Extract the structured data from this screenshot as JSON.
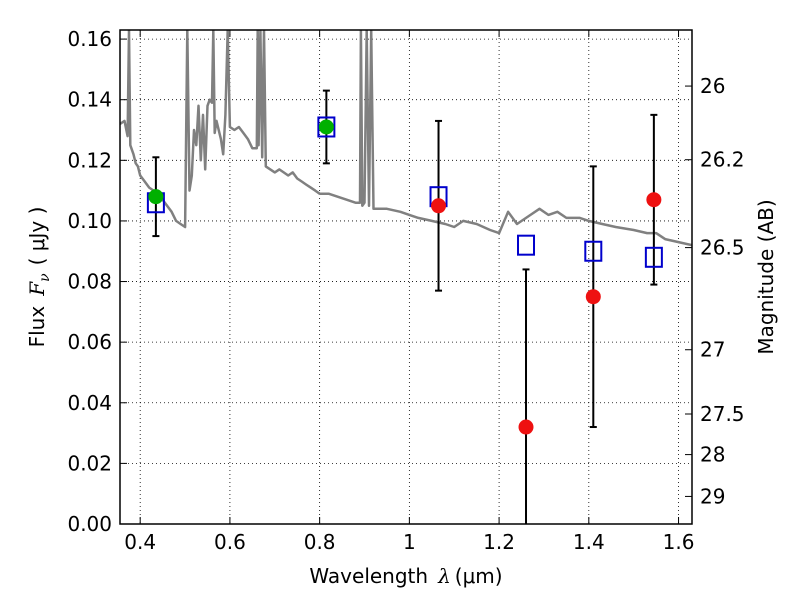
{
  "chart_data": {
    "type": "scatter",
    "xlabel": "Wavelength",
    "xlabel_symbol": "λ",
    "xlabel_unit": "(μm)",
    "ylabel_prefix": "Flux",
    "ylabel_symbol": "F",
    "ylabel_subscript": "ν",
    "ylabel_unit": "( μJy )",
    "ylabel_right": "Magnitude (AB)",
    "xlim": [
      0.355,
      1.63
    ],
    "ylim": [
      0.0,
      0.163
    ],
    "grid": true,
    "x_ticks": [
      0.4,
      0.6,
      0.8,
      1.0,
      1.2,
      1.4,
      1.6
    ],
    "x_tick_labels": [
      "0.4",
      "0.6",
      "0.8",
      "1",
      "1.2",
      "1.4",
      "1.6"
    ],
    "y_ticks": [
      0.0,
      0.02,
      0.04,
      0.06,
      0.08,
      0.1,
      0.12,
      0.14,
      0.16
    ],
    "y_tick_labels": [
      "0.00",
      "0.02",
      "0.04",
      "0.06",
      "0.08",
      "0.10",
      "0.12",
      "0.14",
      "0.16"
    ],
    "right_ticks": [
      {
        "label": "26",
        "flux": 0.1445
      },
      {
        "label": "26.2",
        "flux": 0.1202
      },
      {
        "label": "26.5",
        "flux": 0.0912
      },
      {
        "label": "27",
        "flux": 0.0575
      },
      {
        "label": "27.5",
        "flux": 0.0363
      },
      {
        "label": "28",
        "flux": 0.0229
      },
      {
        "label": "29",
        "flux": 0.0091
      }
    ],
    "colors": {
      "model": "#808080",
      "green_points": "#00b000",
      "red_points": "#ee1111",
      "squares": "#0000cc",
      "errorbars": "#000000"
    },
    "series": [
      {
        "marker": "circle-green",
        "points": [
          {
            "x": 0.435,
            "y": 0.108,
            "err_low": 0.013,
            "err_high": 0.013
          },
          {
            "x": 0.815,
            "y": 0.131,
            "err_low": 0.012,
            "err_high": 0.012
          }
        ]
      },
      {
        "marker": "circle-red",
        "points": [
          {
            "x": 1.065,
            "y": 0.105,
            "err_low": 0.028,
            "err_high": 0.028
          },
          {
            "x": 1.26,
            "y": 0.032,
            "err_low": 0.052,
            "err_high": 0.052
          },
          {
            "x": 1.41,
            "y": 0.075,
            "err_low": 0.043,
            "err_high": 0.043
          },
          {
            "x": 1.545,
            "y": 0.107,
            "err_low": 0.028,
            "err_high": 0.028
          }
        ]
      },
      {
        "marker": "square-blue-open",
        "points": [
          {
            "x": 0.435,
            "y": 0.106
          },
          {
            "x": 0.815,
            "y": 0.131
          },
          {
            "x": 1.065,
            "y": 0.108
          },
          {
            "x": 1.26,
            "y": 0.092
          },
          {
            "x": 1.41,
            "y": 0.09
          },
          {
            "x": 1.545,
            "y": 0.088
          }
        ]
      },
      {
        "marker": "line-grey",
        "points": [
          [
            0.355,
            0.132
          ],
          [
            0.365,
            0.133
          ],
          [
            0.372,
            0.128
          ],
          [
            0.375,
            0.163
          ],
          [
            0.378,
            0.125
          ],
          [
            0.385,
            0.122
          ],
          [
            0.39,
            0.119
          ],
          [
            0.395,
            0.118
          ],
          [
            0.4,
            0.115
          ],
          [
            0.41,
            0.113
          ],
          [
            0.42,
            0.111
          ],
          [
            0.43,
            0.11
          ],
          [
            0.44,
            0.109
          ],
          [
            0.45,
            0.107
          ],
          [
            0.46,
            0.105
          ],
          [
            0.47,
            0.103
          ],
          [
            0.48,
            0.1
          ],
          [
            0.49,
            0.099
          ],
          [
            0.5,
            0.098
          ],
          [
            0.505,
            0.163
          ],
          [
            0.51,
            0.11
          ],
          [
            0.515,
            0.115
          ],
          [
            0.52,
            0.13
          ],
          [
            0.525,
            0.125
          ],
          [
            0.53,
            0.138
          ],
          [
            0.535,
            0.12
          ],
          [
            0.54,
            0.135
          ],
          [
            0.545,
            0.117
          ],
          [
            0.55,
            0.138
          ],
          [
            0.555,
            0.14
          ],
          [
            0.56,
            0.139
          ],
          [
            0.563,
            0.163
          ],
          [
            0.566,
            0.129
          ],
          [
            0.57,
            0.133
          ],
          [
            0.58,
            0.127
          ],
          [
            0.585,
            0.122
          ],
          [
            0.59,
            0.135
          ],
          [
            0.595,
            0.163
          ],
          [
            0.6,
            0.131
          ],
          [
            0.61,
            0.13
          ],
          [
            0.62,
            0.131
          ],
          [
            0.63,
            0.129
          ],
          [
            0.64,
            0.127
          ],
          [
            0.65,
            0.124
          ],
          [
            0.66,
            0.124
          ],
          [
            0.662,
            0.163
          ],
          [
            0.664,
            0.125
          ],
          [
            0.668,
            0.163
          ],
          [
            0.672,
            0.121
          ],
          [
            0.676,
            0.163
          ],
          [
            0.68,
            0.118
          ],
          [
            0.69,
            0.117
          ],
          [
            0.7,
            0.116
          ],
          [
            0.71,
            0.117
          ],
          [
            0.72,
            0.116
          ],
          [
            0.73,
            0.115
          ],
          [
            0.74,
            0.116
          ],
          [
            0.75,
            0.114
          ],
          [
            0.76,
            0.113
          ],
          [
            0.77,
            0.112
          ],
          [
            0.78,
            0.111
          ],
          [
            0.79,
            0.11
          ],
          [
            0.8,
            0.109
          ],
          [
            0.82,
            0.109
          ],
          [
            0.84,
            0.108
          ],
          [
            0.86,
            0.107
          ],
          [
            0.88,
            0.106
          ],
          [
            0.89,
            0.106
          ],
          [
            0.892,
            0.163
          ],
          [
            0.895,
            0.105
          ],
          [
            0.9,
            0.106
          ],
          [
            0.905,
            0.163
          ],
          [
            0.91,
            0.105
          ],
          [
            0.915,
            0.163
          ],
          [
            0.92,
            0.104
          ],
          [
            0.95,
            0.104
          ],
          [
            0.98,
            0.103
          ],
          [
            1.0,
            0.102
          ],
          [
            1.02,
            0.101
          ],
          [
            1.05,
            0.1
          ],
          [
            1.08,
            0.099
          ],
          [
            1.1,
            0.098
          ],
          [
            1.12,
            0.1
          ],
          [
            1.15,
            0.099
          ],
          [
            1.18,
            0.097
          ],
          [
            1.2,
            0.096
          ],
          [
            1.22,
            0.103
          ],
          [
            1.24,
            0.099
          ],
          [
            1.27,
            0.102
          ],
          [
            1.29,
            0.104
          ],
          [
            1.31,
            0.102
          ],
          [
            1.33,
            0.103
          ],
          [
            1.35,
            0.101
          ],
          [
            1.38,
            0.101
          ],
          [
            1.4,
            0.1
          ],
          [
            1.43,
            0.099
          ],
          [
            1.46,
            0.098
          ],
          [
            1.5,
            0.097
          ],
          [
            1.53,
            0.096
          ],
          [
            1.55,
            0.096
          ],
          [
            1.57,
            0.094
          ],
          [
            1.6,
            0.093
          ],
          [
            1.63,
            0.092
          ]
        ]
      }
    ]
  }
}
